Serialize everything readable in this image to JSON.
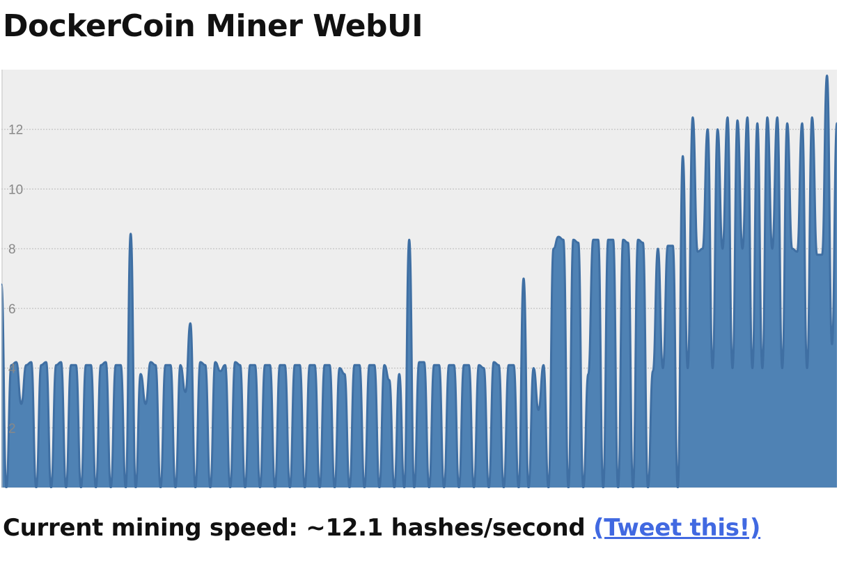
{
  "page": {
    "title": "DockerCoin Miner WebUI"
  },
  "status": {
    "speed_prefix": "Current mining speed: ~",
    "speed_value": "12.1",
    "speed_unit": " hashes/second ",
    "tweet_link": "(Tweet this!)"
  },
  "colors": {
    "area": "#4f82b4",
    "line": "#3f6fa3",
    "plot_bg": "#eeeeee",
    "grid": "#b8b8b8",
    "tick": "#888888",
    "link": "#4169e1"
  },
  "chart_data": {
    "type": "area",
    "title": "",
    "xlabel": "",
    "ylabel": "",
    "ylim": [
      0,
      14
    ],
    "yticks": [
      "2",
      "4",
      "6",
      "8",
      "10",
      "12"
    ],
    "grid": true,
    "series": [
      {
        "values": [
          6.8,
          0,
          4.1,
          4.2,
          2.8,
          4.1,
          4.2,
          0,
          4.1,
          4.2,
          0,
          4.1,
          4.2,
          0,
          4.1,
          4.1,
          0,
          4.1,
          4.1,
          0,
          4.1,
          4.2,
          0,
          4.1,
          4.1,
          0,
          8.5,
          0,
          3.8,
          2.8,
          4.2,
          4.1,
          0,
          4.1,
          4.1,
          0,
          4.1,
          3.2,
          5.5,
          0,
          4.2,
          4.1,
          0,
          4.2,
          3.9,
          4.1,
          0,
          4.2,
          4.1,
          0,
          4.1,
          4.1,
          0,
          4.1,
          4.1,
          0,
          4.1,
          4.1,
          0,
          4.1,
          4.1,
          0,
          4.1,
          4.1,
          0,
          4.1,
          4.1,
          0,
          4.0,
          3.8,
          0,
          4.1,
          4.1,
          0,
          4.1,
          4.1,
          0,
          4.1,
          3.6,
          0,
          3.8,
          0,
          8.3,
          0,
          4.2,
          4.2,
          0,
          4.1,
          4.1,
          0,
          4.1,
          4.1,
          0,
          4.1,
          4.1,
          0,
          4.1,
          4.0,
          0,
          4.2,
          4.1,
          0,
          4.1,
          4.1,
          0,
          7.0,
          0,
          4.0,
          2.6,
          4.1,
          0,
          8.0,
          8.4,
          8.3,
          0,
          8.3,
          8.2,
          0,
          3.8,
          8.3,
          8.3,
          0,
          8.3,
          8.3,
          0,
          8.3,
          8.2,
          0,
          8.3,
          8.2,
          0,
          3.9,
          8.0,
          4.0,
          8.1,
          8.1,
          0,
          11.1,
          4.0,
          12.4,
          7.9,
          8.0,
          12.0,
          4.0,
          12.0,
          8.0,
          12.4,
          4.0,
          12.3,
          8.0,
          12.4,
          4.0,
          12.2,
          4.0,
          12.4,
          8.0,
          12.4,
          4.0,
          12.2,
          8.0,
          7.9,
          12.2,
          4.0,
          12.4,
          7.8,
          7.8,
          13.8,
          4.8,
          12.2
        ]
      }
    ]
  }
}
